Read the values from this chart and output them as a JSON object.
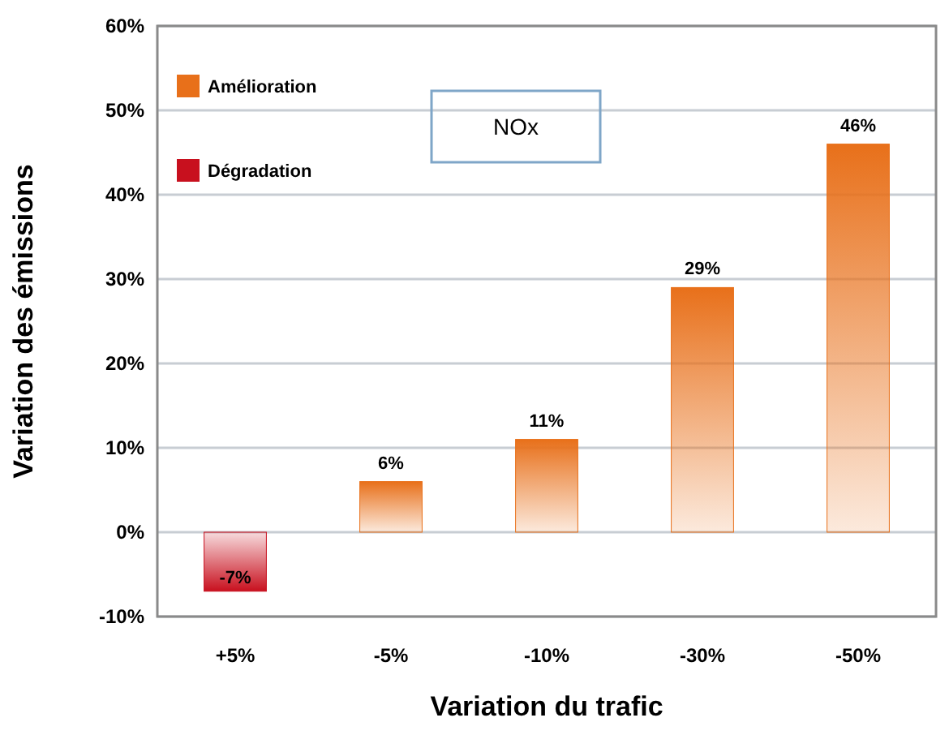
{
  "chart_data": {
    "type": "bar",
    "title": "NOx",
    "xlabel": "Variation du trafic",
    "ylabel": "Variation des émissions",
    "categories": [
      "+5%",
      "-5%",
      "-10%",
      "-30%",
      "-50%"
    ],
    "series": [
      {
        "name": "Amélioration",
        "color": "#e8701a",
        "values": [
          null,
          6,
          11,
          29,
          46
        ],
        "value_labels": [
          null,
          "6%",
          "11%",
          "29%",
          "46%"
        ]
      },
      {
        "name": "Dégradation",
        "color": "#c8101e",
        "values": [
          -7,
          null,
          null,
          null,
          null
        ],
        "value_labels": [
          "-7%",
          null,
          null,
          null,
          null
        ]
      }
    ],
    "ylim": [
      -10,
      60
    ],
    "yticks": [
      {
        "value": -10,
        "label": "-10%"
      },
      {
        "value": 0,
        "label": "0%"
      },
      {
        "value": 10,
        "label": "10%"
      },
      {
        "value": 20,
        "label": "20%"
      },
      {
        "value": 30,
        "label": "30%"
      },
      {
        "value": 40,
        "label": "40%"
      },
      {
        "value": 50,
        "label": "50%"
      },
      {
        "value": 60,
        "label": "60%"
      }
    ],
    "grid": "y",
    "legend": "top left"
  }
}
